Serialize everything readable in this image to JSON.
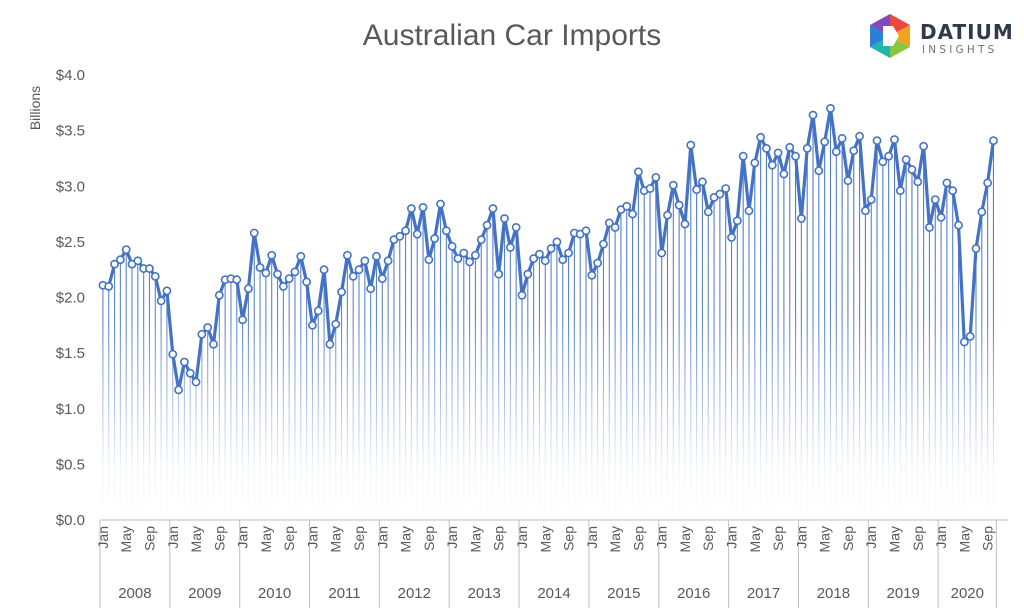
{
  "brand": {
    "name": "DATIUM",
    "sub": "INSIGHTS"
  },
  "chart_data": {
    "type": "line",
    "title": "Australian Car Imports",
    "ylabel": "Billions",
    "ylim": [
      0,
      4
    ],
    "yticks": [
      "$0.0",
      "$0.5",
      "$1.0",
      "$1.5",
      "$2.0",
      "$2.5",
      "$3.0",
      "$3.5",
      "$4.0"
    ],
    "month_tick_labels": [
      "Jan",
      "May",
      "Sep"
    ],
    "years": [
      "2008",
      "2009",
      "2010",
      "2011",
      "2012",
      "2013",
      "2014",
      "2015",
      "2016",
      "2017",
      "2018",
      "2019",
      "2020"
    ],
    "series_color": "#4472c4",
    "series": [
      {
        "values": [
          2.11,
          2.1,
          2.3,
          2.34,
          2.43,
          2.3,
          2.33,
          2.26,
          2.26,
          2.19,
          1.97,
          2.06,
          1.49,
          1.17,
          1.42,
          1.32,
          1.24,
          1.67,
          1.73,
          1.58,
          2.02,
          2.16,
          2.17,
          2.16,
          1.8,
          2.08,
          2.58,
          2.27,
          2.22,
          2.38,
          2.21,
          2.1,
          2.17,
          2.23,
          2.37,
          2.14,
          1.75,
          1.88,
          2.25,
          1.58,
          1.76,
          2.05,
          2.38,
          2.19,
          2.25,
          2.33,
          2.08,
          2.37,
          2.17,
          2.33,
          2.52,
          2.55,
          2.6,
          2.8,
          2.57,
          2.81,
          2.34,
          2.53,
          2.84,
          2.6,
          2.46,
          2.35,
          2.4,
          2.32,
          2.38,
          2.52,
          2.65,
          2.8,
          2.21,
          2.71,
          2.45,
          2.63,
          2.02,
          2.21,
          2.35,
          2.39,
          2.33,
          2.44,
          2.5,
          2.34,
          2.4,
          2.58,
          2.57,
          2.6,
          2.2,
          2.31,
          2.48,
          2.67,
          2.63,
          2.79,
          2.82,
          2.75,
          3.13,
          2.96,
          2.98,
          3.08,
          2.4,
          2.74,
          3.01,
          2.83,
          2.66,
          3.37,
          2.97,
          3.04,
          2.77,
          2.9,
          2.93,
          2.98,
          2.54,
          2.69,
          3.27,
          2.78,
          3.21,
          3.44,
          3.34,
          3.19,
          3.3,
          3.11,
          3.35,
          3.27,
          2.71,
          3.34,
          3.64,
          3.14,
          3.4,
          3.7,
          3.31,
          3.43,
          3.05,
          3.32,
          3.45,
          2.78,
          2.88,
          3.41,
          3.22,
          3.27,
          3.42,
          2.96,
          3.24,
          3.15,
          3.04,
          3.36,
          2.63,
          2.88,
          2.72,
          3.03,
          2.96,
          2.65,
          1.6,
          1.65,
          2.44,
          2.77,
          3.03,
          3.41
        ]
      }
    ]
  }
}
